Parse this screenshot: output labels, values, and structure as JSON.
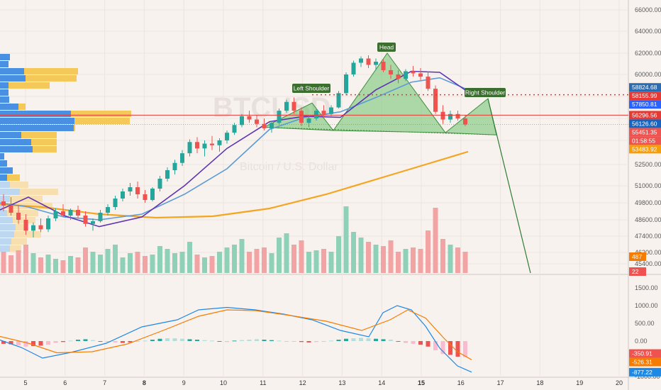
{
  "chart_data": [
    {
      "type": "candlestick",
      "watermark": {
        "symbol": "BTCUSD",
        "subtitle": "Bitcoin / U.S. Dollar"
      },
      "x_ticks": [
        "5",
        "6",
        "7",
        "8",
        "9",
        "10",
        "11",
        "12",
        "13",
        "14",
        "15",
        "16",
        "17",
        "18",
        "19",
        "20"
      ],
      "x_bold_ticks": [
        "8",
        "15"
      ],
      "y_ticks": [
        66000,
        64000,
        62000,
        60000,
        58000,
        56000,
        54000,
        52500,
        51000,
        49800,
        48600,
        47400,
        46200,
        45400
      ],
      "y_tick_labels": [
        "66000.00",
        "64000.00",
        "62000.00",
        "60000.00",
        "58000.00",
        "56000.00",
        "54000.00",
        "52500.00",
        "51000.00",
        "49800.00",
        "48600.00",
        "47400.00",
        "46200.00",
        "45400.00"
      ],
      "ylim": [
        44400,
        67000
      ],
      "candles": [
        [
          49900,
          50400,
          49200,
          49600
        ],
        [
          49600,
          50200,
          48900,
          49100
        ],
        [
          49100,
          49600,
          48300,
          48600
        ],
        [
          48600,
          49000,
          47500,
          47800
        ],
        [
          47800,
          48400,
          47300,
          48200
        ],
        [
          48200,
          48700,
          47700,
          47900
        ],
        [
          47900,
          48900,
          47700,
          48700
        ],
        [
          48700,
          49400,
          48500,
          49200
        ],
        [
          49200,
          49700,
          48800,
          48900
        ],
        [
          48900,
          49400,
          48600,
          49300
        ],
        [
          49300,
          49600,
          48700,
          48900
        ],
        [
          48900,
          49200,
          48100,
          48300
        ],
        [
          48300,
          48700,
          47800,
          48500
        ],
        [
          48500,
          49300,
          48400,
          49100
        ],
        [
          49100,
          49700,
          48900,
          49500
        ],
        [
          49500,
          50300,
          49300,
          50100
        ],
        [
          50100,
          50800,
          49900,
          50600
        ],
        [
          50600,
          51200,
          50300,
          50900
        ],
        [
          50900,
          51300,
          50100,
          50400
        ],
        [
          50400,
          50700,
          49800,
          50000
        ],
        [
          50000,
          50900,
          49900,
          50800
        ],
        [
          50800,
          51700,
          50600,
          51500
        ],
        [
          51500,
          52300,
          51300,
          52100
        ],
        [
          52100,
          52800,
          51800,
          52600
        ],
        [
          52600,
          53400,
          52400,
          53200
        ],
        [
          53200,
          54100,
          53000,
          53900
        ],
        [
          53900,
          54300,
          53200,
          53500
        ],
        [
          53500,
          54000,
          53000,
          53800
        ],
        [
          53800,
          54400,
          53400,
          53700
        ],
        [
          53700,
          54200,
          53300,
          54000
        ],
        [
          54000,
          54900,
          53800,
          54700
        ],
        [
          54700,
          55600,
          54500,
          55400
        ],
        [
          55400,
          56400,
          55200,
          56200
        ],
        [
          56200,
          56700,
          55600,
          55900
        ],
        [
          55900,
          56300,
          55200,
          55500
        ],
        [
          55500,
          56000,
          54900,
          55100
        ],
        [
          55100,
          55800,
          54700,
          55600
        ],
        [
          55600,
          56900,
          55400,
          56700
        ],
        [
          56700,
          57700,
          56500,
          57500
        ],
        [
          57500,
          57900,
          56400,
          56700
        ],
        [
          56700,
          57000,
          55300,
          55600
        ],
        [
          55600,
          56200,
          55200,
          56000
        ],
        [
          56000,
          56900,
          55800,
          56700
        ],
        [
          56700,
          57200,
          56100,
          56400
        ],
        [
          56400,
          57200,
          56200,
          57000
        ],
        [
          57000,
          58500,
          56900,
          58300
        ],
        [
          58300,
          60200,
          58100,
          60000
        ],
        [
          60000,
          61300,
          59800,
          61100
        ],
        [
          61100,
          61700,
          60700,
          61500
        ],
        [
          61500,
          61800,
          60600,
          60900
        ],
        [
          60900,
          61500,
          60400,
          61200
        ],
        [
          61200,
          61400,
          60200,
          60400
        ],
        [
          60400,
          60900,
          59600,
          60000
        ],
        [
          60000,
          60400,
          59200,
          59600
        ],
        [
          59600,
          60500,
          59400,
          60300
        ],
        [
          60300,
          60800,
          59800,
          60100
        ],
        [
          60100,
          60600,
          59500,
          59800
        ],
        [
          59800,
          60300,
          58500,
          58700
        ],
        [
          58700,
          59000,
          56400,
          56600
        ],
        [
          56600,
          57200,
          55500,
          55900
        ],
        [
          55900,
          56700,
          55600,
          56400
        ],
        [
          56400,
          56700,
          55800,
          56000
        ],
        [
          56000,
          56300,
          55300,
          55450
        ]
      ],
      "indicators": [
        "MA fast (blue)",
        "MA slow (purple)",
        "MA 200 (orange)"
      ],
      "volume_profile": "left side histogram",
      "annotations": [
        "Left Shoulder",
        "Head",
        "Right Shoulder"
      ],
      "price_tags": [
        {
          "label": "58824.68",
          "value": 58824.68,
          "color": "#2b6cb0"
        },
        {
          "label": "58155.99",
          "value": 58155.99,
          "color": "#e53935"
        },
        {
          "label": "57850.81",
          "value": 57850.81,
          "color": "#2962ff"
        },
        {
          "label": "56296.56",
          "value": 56296.56,
          "color": "#e53935"
        },
        {
          "label": "56126.60",
          "value": 56126.6,
          "color": "#1565c0"
        },
        {
          "label": "55451.35",
          "value": 55451.35,
          "color": "#ef5350"
        },
        {
          "label": "01:58:55",
          "value": 54980,
          "color": "#ef5350"
        },
        {
          "label": "53483.92",
          "value": 53483.92,
          "color": "#f59e0b"
        }
      ],
      "volume_tags": [
        {
          "label": "487",
          "color": "#f57c00"
        },
        {
          "label": "22",
          "color": "#ef5350"
        }
      ],
      "resistance_dotted": 58150,
      "support_solid": 56300
    },
    {
      "type": "macd",
      "y_ticks": [
        1500,
        1000,
        500,
        0,
        -500,
        -1000
      ],
      "y_tick_labels": [
        "1500.00",
        "1000.00",
        "500.00",
        "0.00",
        "-500.00",
        "-1000.00"
      ],
      "ylim": [
        -1250,
        1750
      ],
      "tags": [
        {
          "label": "-350.91",
          "value": -350.91,
          "color": "#ef5350"
        },
        {
          "label": "-526.31",
          "value": -526.31,
          "color": "#f57c00"
        },
        {
          "label": "-877.22",
          "value": -877.22,
          "color": "#1e88e5"
        }
      ]
    }
  ]
}
